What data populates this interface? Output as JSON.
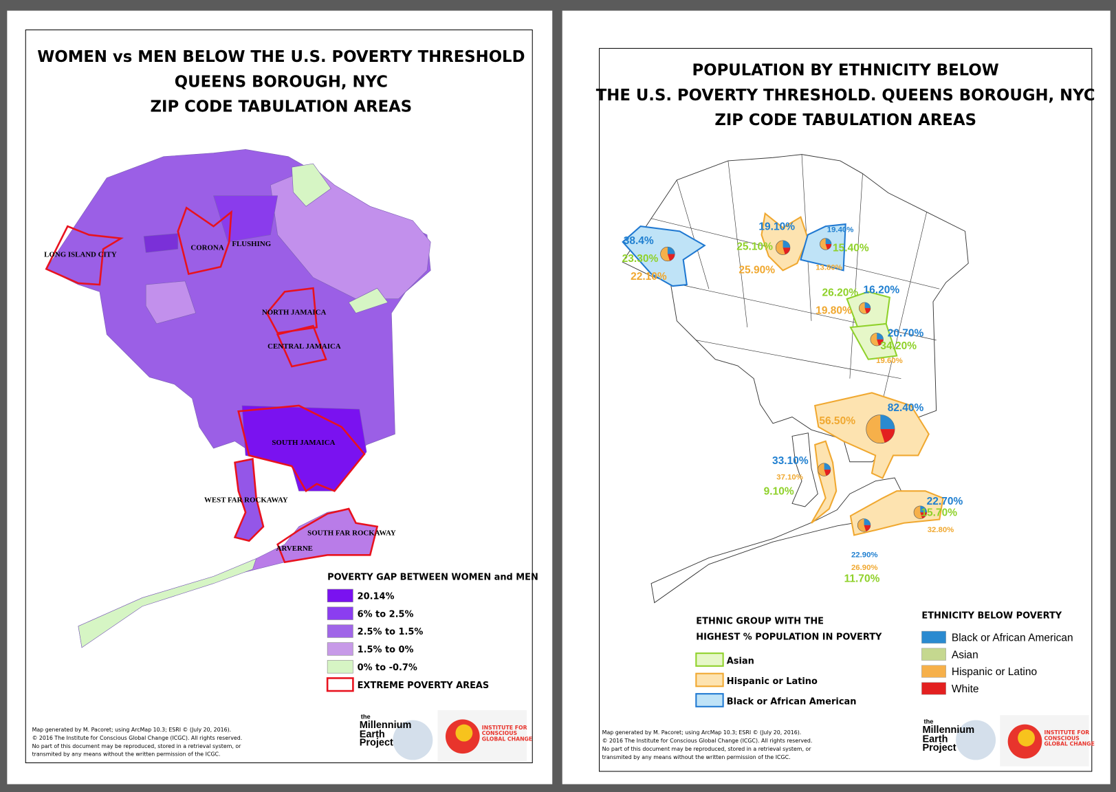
{
  "left_map": {
    "title": [
      "WOMEN vs MEN BELOW THE U.S. POVERTY THRESHOLD",
      "QUEENS BOROUGH, NYC",
      "ZIP CODE TABULATION AREAS"
    ],
    "area_labels": [
      "LONG ISLAND CITY",
      "CORONA",
      "FLUSHING",
      "NORTH JAMAICA",
      "CENTRAL JAMAICA",
      "SOUTH JAMAICA",
      "WEST FAR ROCKAWAY",
      "SOUTH FAR ROCKAWAY",
      "ARVERNE"
    ],
    "legend": {
      "title": "POVERTY GAP BETWEEN WOMEN and MEN",
      "items": [
        "20.14%",
        "6% to 2.5%",
        "2.5% to 1.5%",
        "1.5% to 0%",
        "0% to -0.7%",
        "EXTREME POVERTY AREAS"
      ]
    },
    "credits": [
      "Map generated by M. Pacoret; using ArcMap 10.3; ESRI © (July 20, 2016).",
      "© 2016 The Institute for Conscious Global Change (ICGC). All rights reserved.",
      "No part of this document may be reproduced, stored in a retrieval system, or",
      "transmited by any means without the written permission of the ICGC."
    ],
    "logos": [
      "the",
      "Millennium",
      "Earth",
      "Project",
      "INSTITUTE FOR",
      "CONSCIOUS",
      "GLOBAL CHANGE"
    ]
  },
  "right_map": {
    "title": [
      "POPULATION BY ETHNICITY BELOW",
      "THE U.S. POVERTY THRESHOLD. QUEENS BOROUGH, NYC",
      "ZIP CODE TABULATION AREAS"
    ],
    "value_labels": [
      "38.4%",
      "23.30%",
      "22.10%",
      "19.10%",
      "25.10%",
      "25.90%",
      "19.40%",
      "15.40%",
      "13.80%",
      "26.20%",
      "16.20%",
      "19.80%",
      "20.70%",
      "34.20%",
      "19.60%",
      "82.40%",
      "56.50%",
      "33.10%",
      "37.10%",
      "9.10%",
      "22.70%",
      "15.70%",
      "32.80%",
      "22.90%",
      "26.90%",
      "11.70%"
    ],
    "legend_group": {
      "title": [
        "ETHNIC GROUP WITH THE",
        "HIGHEST % POPULATION IN POVERTY"
      ],
      "items": [
        "Asian",
        "Hispanic or Latino",
        "Black or African American"
      ]
    },
    "legend_ethnicity": {
      "title": "ETHNICITY BELOW POVERTY",
      "items": [
        "Black or African American",
        "Asian",
        "Hispanic or Latino",
        "White"
      ]
    },
    "credits": [
      "Map generated by M. Pacoret; using ArcMap 10.3; ESRI © (July 20, 2016).",
      "© 2016 The Institute for Conscious Global Change (ICGC). All rights reserved.",
      "No part of this document may be reproduced, stored in a retrieval system, or",
      "transmited by any means without the written permission of the ICGC."
    ],
    "logos": [
      "the",
      "Millennium",
      "Earth",
      "Project",
      "INSTITUTE FOR",
      "CONSCIOUS",
      "GLOBAL CHANGE"
    ]
  }
}
